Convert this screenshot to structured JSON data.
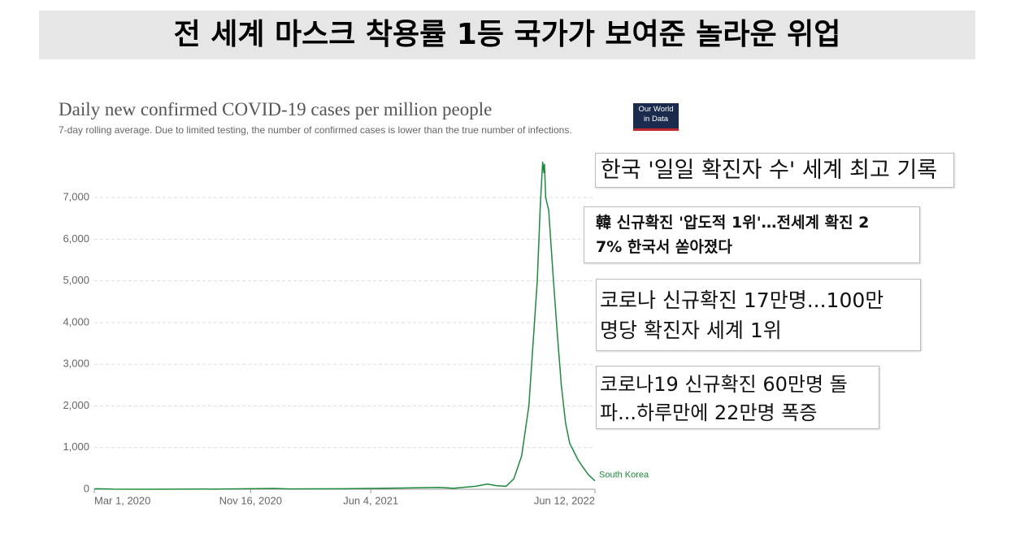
{
  "header": {
    "title": "전 세계 마스크 착용률 1등 국가가 보여준 놀라운 위업"
  },
  "logo": [
    "Our World",
    "in Data"
  ],
  "headlines": [
    [
      "한국 '일일 확진자 수' 세계 최고 기록"
    ],
    [
      "韓 신규확진 '압도적 1위'…전세계 확진 2",
      "7% 한국서 쏟아졌다"
    ],
    [
      "코로나 신규확진 17만명...100만",
      "명당 확진자 세계 1위"
    ],
    [
      "코로나19 신규확진 60만명 돌",
      "파...하루만에 22만명 폭증"
    ]
  ],
  "chart_data": {
    "type": "line",
    "title": "Daily new confirmed COVID-19 cases per million people",
    "subtitle": "7-day rolling average. Due to limited testing, the number of confirmed cases is lower than the true number of infections.",
    "x": [
      "2020-03-01",
      "2020-03-08",
      "2020-04-01",
      "2020-06-01",
      "2020-08-30",
      "2020-09-15",
      "2020-12-25",
      "2021-01-20",
      "2021-04-20",
      "2021-07-25",
      "2021-09-25",
      "2021-10-20",
      "2021-11-25",
      "2021-12-15",
      "2021-12-30",
      "2022-01-15",
      "2022-01-28",
      "2022-02-10",
      "2022-02-22",
      "2022-03-01",
      "2022-03-08",
      "2022-03-13",
      "2022-03-17",
      "2022-03-19",
      "2022-03-20",
      "2022-03-22",
      "2022-03-27",
      "2022-04-03",
      "2022-04-10",
      "2022-04-17",
      "2022-04-24",
      "2022-05-01",
      "2022-05-08",
      "2022-05-15",
      "2022-05-22",
      "2022-06-01",
      "2022-06-12"
    ],
    "series": [
      {
        "name": "South Korea",
        "color": "#1e8a3c",
        "values": [
          10,
          12,
          2,
          1,
          6,
          3,
          20,
          8,
          12,
          30,
          45,
          25,
          70,
          125,
          85,
          70,
          250,
          800,
          2000,
          3500,
          5000,
          6800,
          7850,
          7600,
          7800,
          7000,
          6700,
          5200,
          3800,
          2500,
          1600,
          1100,
          900,
          700,
          550,
          350,
          200
        ]
      }
    ],
    "xlim": [
      "2020-03-01",
      "2022-06-12"
    ],
    "xticks": [
      {
        "value": "2020-03-01",
        "label": "Mar 1, 2020"
      },
      {
        "value": "2020-11-16",
        "label": "Nov 16, 2020"
      },
      {
        "value": "2021-06-04",
        "label": "Jun 4, 2021"
      },
      {
        "value": "2022-06-12",
        "label": "Jun 12, 2022"
      }
    ],
    "ylim": [
      0,
      7900
    ],
    "yticks": [
      0,
      {
        "value": 1000,
        "label": "1,000"
      },
      {
        "value": 2000,
        "label": "2,000"
      },
      {
        "value": 3000,
        "label": "3,000"
      },
      {
        "value": 4000,
        "label": "4,000"
      },
      {
        "value": 5000,
        "label": "5,000"
      },
      {
        "value": 6000,
        "label": "6,000"
      },
      {
        "value": 7000,
        "label": "7,000"
      }
    ],
    "grid": true
  }
}
